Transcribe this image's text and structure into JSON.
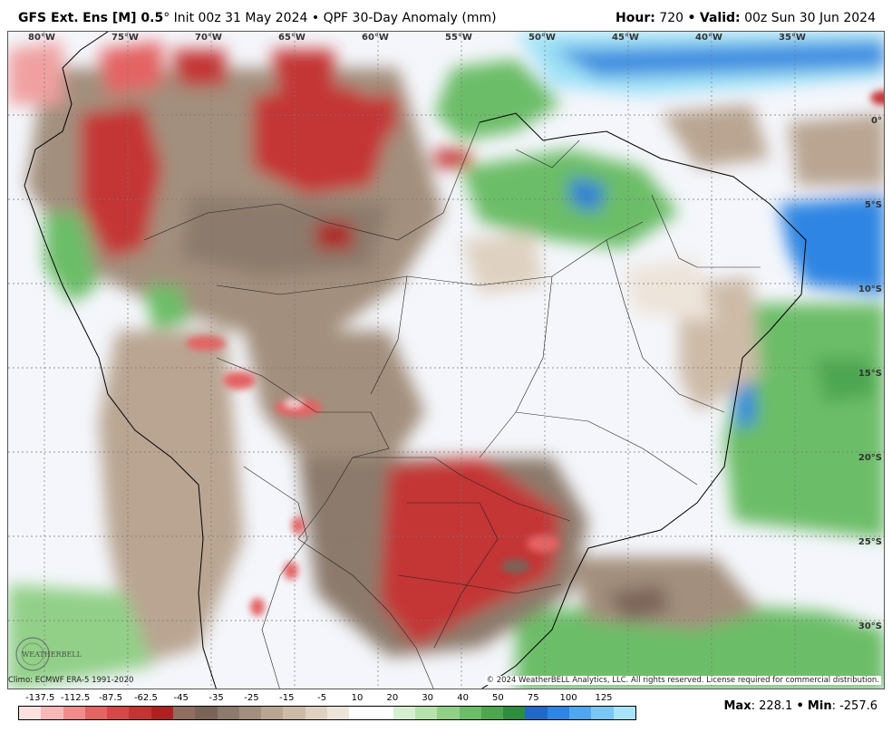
{
  "header": {
    "model": "GFS Ext.",
    "ens": "Ens [M] 0.5",
    "degree": "°",
    "init": "Init 00z 31 May 2024",
    "sep": "•",
    "product": "QPF 30-Day Anomaly (mm)",
    "hour_label": "Hour:",
    "hour_value": "720",
    "valid_label": "Valid:",
    "valid_value": "00z Sun 30 Jun 2024"
  },
  "map": {
    "lon_labels": [
      "80°W",
      "75°W",
      "70°W",
      "65°W",
      "60°W",
      "55°W",
      "50°W",
      "45°W",
      "40°W",
      "35°W"
    ],
    "lat_labels": [
      "0°",
      "5°S",
      "10°S",
      "15°S",
      "20°S",
      "25°S",
      "30°S"
    ]
  },
  "footer": {
    "climo": "Climo: ECMWF ERA-5 1991-2020",
    "copyright": "© 2024 WeatherBELL Analytics, LLC. All rights reserved. License required for commercial distribution.",
    "logo_text": "WEATHERBELL",
    "max_label": "Max",
    "max_value": ": 228.1",
    "min_label": "Min",
    "min_value": ": -257.6"
  },
  "colorbar": {
    "labels": [
      "-137.5",
      "-112.5",
      "-87.5",
      "-62.5",
      "-45",
      "-35",
      "-25",
      "-15",
      "-5",
      "10",
      "20",
      "30",
      "40",
      "50",
      "75",
      "100",
      "125"
    ],
    "colors": [
      "#fde0e0",
      "#f8b8b8",
      "#f08c8c",
      "#e46464",
      "#d64848",
      "#c43434",
      "#b02020",
      "#8f6e5f",
      "#7a6458",
      "#8c7a6c",
      "#a38f7d",
      "#b9a592",
      "#cdbba8",
      "#dfd1c1",
      "#ede4da",
      "#ffffff",
      "#ffffff",
      "#d6efd0",
      "#b6e2ac",
      "#92d088",
      "#6cbd67",
      "#4ea651",
      "#2f8d40",
      "#2169c9",
      "#2e85e3",
      "#4ea7ef",
      "#79c7f6",
      "#a9e3fb"
    ]
  }
}
